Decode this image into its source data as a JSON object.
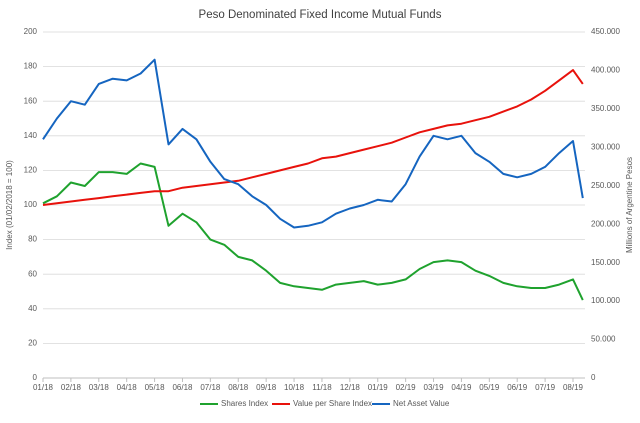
{
  "chart_data": {
    "type": "line",
    "title": "Peso Denominated Fixed Income Mutual Funds",
    "y_label": "Index (01/02/2018 = 100)",
    "y2_label": "Millions of Argentine Pesos",
    "grid": true,
    "legend": "bottom",
    "xlim": [
      0,
      19.43
    ],
    "xticks": [
      {
        "value": 0,
        "label": "01/18"
      },
      {
        "value": 1,
        "label": "02/18"
      },
      {
        "value": 2,
        "label": "03/18"
      },
      {
        "value": 3,
        "label": "04/18"
      },
      {
        "value": 4,
        "label": "05/18"
      },
      {
        "value": 5,
        "label": "06/18"
      },
      {
        "value": 6,
        "label": "07/18"
      },
      {
        "value": 7,
        "label": "08/18"
      },
      {
        "value": 8,
        "label": "09/18"
      },
      {
        "value": 9,
        "label": "10/18"
      },
      {
        "value": 10,
        "label": "11/18"
      },
      {
        "value": 11,
        "label": "12/18"
      },
      {
        "value": 12,
        "label": "01/19"
      },
      {
        "value": 13,
        "label": "02/19"
      },
      {
        "value": 14,
        "label": "03/19"
      },
      {
        "value": 15,
        "label": "04/19"
      },
      {
        "value": 16,
        "label": "05/19"
      },
      {
        "value": 17,
        "label": "06/19"
      },
      {
        "value": 18,
        "label": "07/19"
      },
      {
        "value": 19,
        "label": "08/19"
      }
    ],
    "ylim": [
      0,
      200
    ],
    "yticks": [
      0,
      20,
      40,
      60,
      80,
      100,
      120,
      140,
      160,
      180,
      200
    ],
    "y2lim": [
      0,
      450000
    ],
    "y2ticks": [
      0,
      {
        "value": 50000,
        "label": "50.000"
      },
      {
        "value": 100000,
        "label": "100.000"
      },
      {
        "value": 150000,
        "label": "150.000"
      },
      {
        "value": 200000,
        "label": "200.000"
      },
      {
        "value": 250000,
        "label": "250.000"
      },
      {
        "value": 300000,
        "label": "300.000"
      },
      {
        "value": 350000,
        "label": "350.000"
      },
      {
        "value": 400000,
        "label": "400.000"
      },
      {
        "value": 450000,
        "label": "450.000"
      }
    ],
    "x": [
      0,
      0.5,
      1,
      1.5,
      2,
      2.5,
      3,
      3.5,
      4,
      4.5,
      5,
      5.5,
      6,
      6.5,
      7,
      7.5,
      8,
      8.5,
      9,
      9.5,
      10,
      10.5,
      11,
      11.5,
      12,
      12.5,
      13,
      13.5,
      14,
      14.5,
      15,
      15.5,
      16,
      16.5,
      17,
      17.5,
      18,
      18.5,
      19,
      19.35
    ],
    "series": [
      {
        "name": "Shares Index",
        "color": "#1fa22e",
        "values": [
          101,
          105,
          113,
          111,
          119,
          119,
          118,
          124,
          122,
          88,
          95,
          90,
          80,
          77,
          70,
          68,
          62,
          55,
          53,
          52,
          51,
          54,
          55,
          56,
          54,
          55,
          57,
          63,
          67,
          68,
          67,
          62,
          59,
          55,
          53,
          52,
          52,
          54,
          57,
          45
        ]
      },
      {
        "name": "Value per Share Index",
        "color": "#e8120c",
        "values": [
          100,
          101,
          102,
          103,
          104,
          105,
          106,
          107,
          108,
          108,
          110,
          111,
          112,
          113,
          114,
          116,
          118,
          120,
          122,
          124,
          127,
          128,
          130,
          132,
          134,
          136,
          139,
          142,
          144,
          146,
          147,
          149,
          151,
          154,
          157,
          161,
          166,
          172,
          178,
          170
        ]
      },
      {
        "name": "Net Asset Value",
        "color": "#1565c0",
        "axis": "y2",
        "values": [
          310500,
          337500,
          360000,
          355500,
          382500,
          389250,
          387000,
          396000,
          414000,
          303750,
          324000,
          310500,
          281250,
          258750,
          252000,
          236250,
          225000,
          207000,
          195750,
          198000,
          202500,
          213750,
          220500,
          225000,
          231750,
          229500,
          252000,
          288000,
          315000,
          310500,
          315000,
          292500,
          281250,
          265500,
          261000,
          265500,
          274500,
          292500,
          308250,
          234000
        ]
      }
    ]
  }
}
